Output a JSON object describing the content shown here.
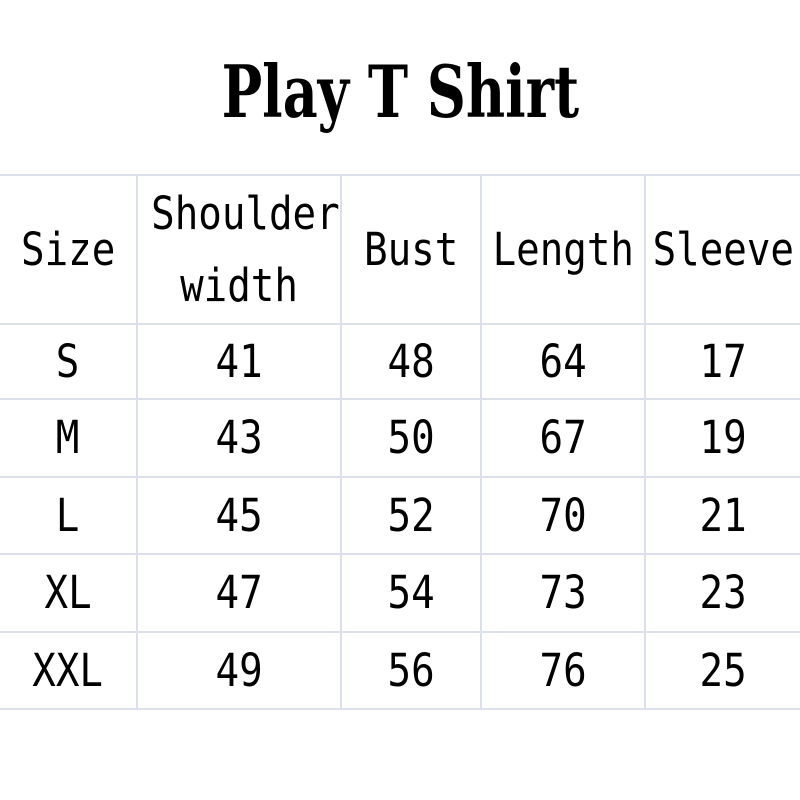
{
  "title": "Play T Shirt",
  "chart_data": {
    "type": "table",
    "title": "Play T Shirt",
    "columns": [
      "Size",
      "Shoulder width",
      "Bust",
      "Length",
      "Sleeve"
    ],
    "rows": [
      [
        "S",
        41,
        48,
        64,
        17
      ],
      [
        "M",
        43,
        50,
        67,
        19
      ],
      [
        "L",
        45,
        52,
        70,
        21
      ],
      [
        "XL",
        47,
        54,
        73,
        23
      ],
      [
        "XXL",
        49,
        56,
        76,
        25
      ]
    ],
    "layout_hints": {
      "grid": "on",
      "header_rows": 1,
      "units_shown": false
    }
  },
  "colors": {
    "grid_line": "#dbe0ec",
    "text": "#000000",
    "background": "#ffffff"
  }
}
